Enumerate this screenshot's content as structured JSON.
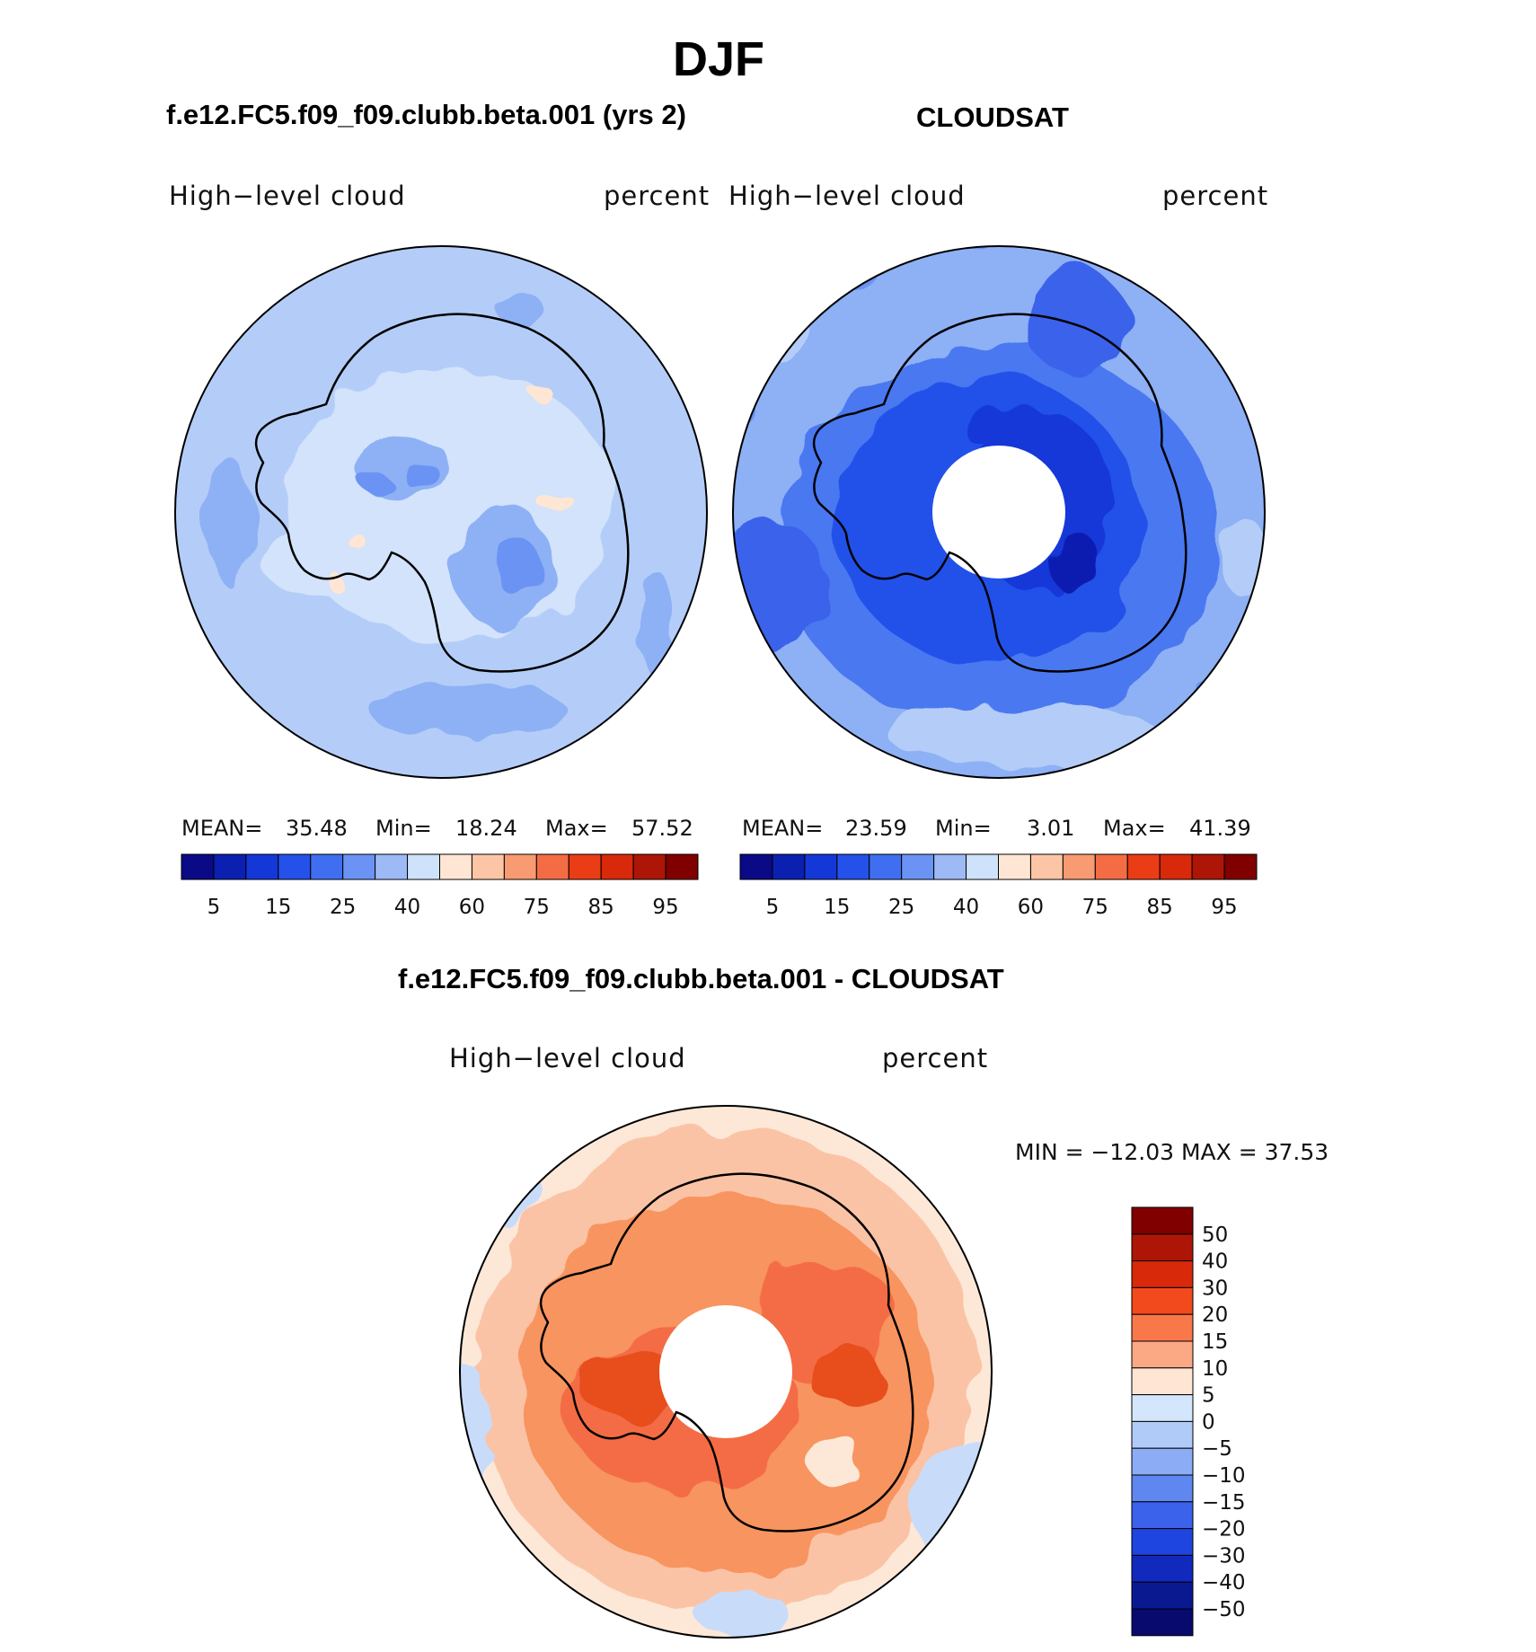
{
  "title": "DJF",
  "chart_data": [
    {
      "type": "heatmap",
      "projection": "polar stereographic, south pole",
      "title": "f.e12.FC5.f09_f09.clubb.beta.001 (yrs 2)",
      "field_label": "High−level cloud",
      "units": "percent",
      "stats": {
        "mean_label": "MEAN=",
        "mean": "35.48",
        "min_label": "Min=",
        "min": "18.24",
        "max_label": "Max=",
        "max": "57.52"
      },
      "colorbar": {
        "orientation": "horizontal",
        "tick_labels": [
          "5",
          "15",
          "25",
          "40",
          "60",
          "75",
          "85",
          "95"
        ],
        "colors": [
          "#0a0a87",
          "#0b1fb0",
          "#1438d8",
          "#2451ea",
          "#3f6ff0",
          "#6a93f3",
          "#9dbaf7",
          "#cfe2fb",
          "#ffe6d4",
          "#fcc6a6",
          "#f89a72",
          "#f46c44",
          "#ea3d16",
          "#d8290a",
          "#ad1606",
          "#800000"
        ]
      }
    },
    {
      "type": "heatmap",
      "projection": "polar stereographic, south pole",
      "title": "CLOUDSAT",
      "field_label": "High−level cloud",
      "units": "percent",
      "stats": {
        "mean_label": "MEAN=",
        "mean": "23.59",
        "min_label": "Min=",
        "min": "3.01",
        "max_label": "Max=",
        "max": "41.39"
      },
      "colorbar": {
        "orientation": "horizontal",
        "tick_labels": [
          "5",
          "15",
          "25",
          "40",
          "60",
          "75",
          "85",
          "95"
        ],
        "colors": [
          "#0a0a87",
          "#0b1fb0",
          "#1438d8",
          "#2451ea",
          "#3f6ff0",
          "#6a93f3",
          "#9dbaf7",
          "#cfe2fb",
          "#ffe6d4",
          "#fcc6a6",
          "#f89a72",
          "#f46c44",
          "#ea3d16",
          "#d8290a",
          "#ad1606",
          "#800000"
        ]
      }
    },
    {
      "type": "heatmap",
      "projection": "polar stereographic, south pole",
      "title": "f.e12.FC5.f09_f09.clubb.beta.001 - CLOUDSAT",
      "field_label": "High−level cloud",
      "units": "percent",
      "stats_text": "MIN = −12.03 MAX =   37.53",
      "colorbar": {
        "orientation": "vertical",
        "tick_labels": [
          "50",
          "40",
          "30",
          "20",
          "15",
          "10",
          "5",
          "0",
          "−5",
          "−10",
          "−15",
          "−20",
          "−30",
          "−40",
          "−50"
        ],
        "colors": [
          "#800000",
          "#ad1606",
          "#d8290a",
          "#f24a1c",
          "#f8784a",
          "#fba885",
          "#ffe6d4",
          "#d4e6fb",
          "#b0cbf8",
          "#8cadf5",
          "#5f87f0",
          "#3a62ea",
          "#1e45e0",
          "#1129bd",
          "#0b1990",
          "#080a6e"
        ]
      }
    }
  ]
}
